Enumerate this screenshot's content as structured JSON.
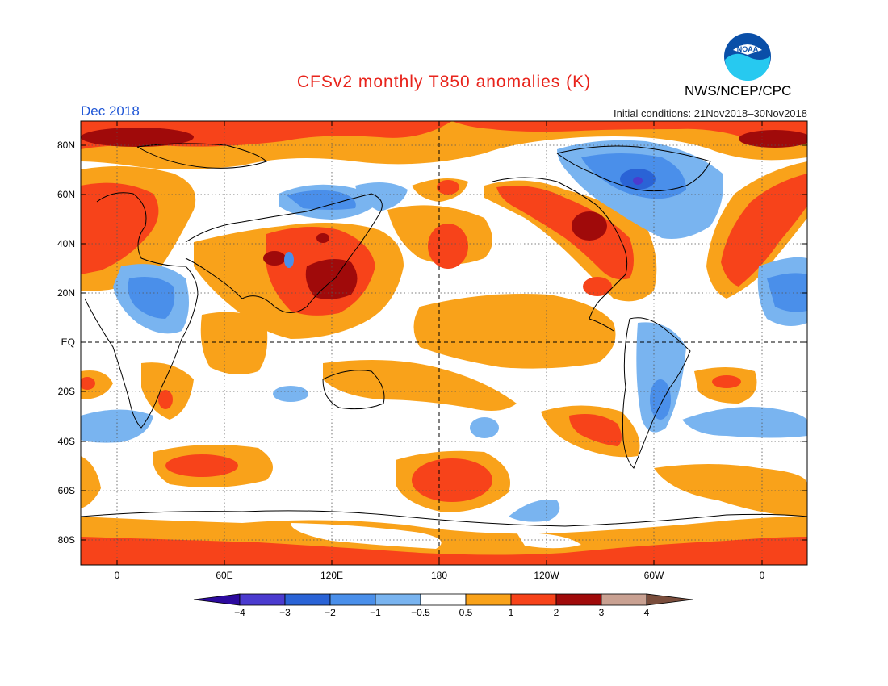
{
  "header": {
    "title": "CFSv2 monthly T850 anomalies (K)",
    "month": "Dec 2018",
    "initial_conditions": "Initial conditions: 21Nov2018–30Nov2018",
    "organization": "NWS/NCEP/CPC",
    "logo_text": "NOAA"
  },
  "colors": {
    "title": "#e8231b",
    "month": "#1f56d6",
    "ocean_land_neutral": "#ffffff",
    "pos_0_5_1": "#f9a21a",
    "pos_1_2": "#f7431a",
    "pos_2_3": "#a00a0a",
    "pos_3_4": "#c9a192",
    "pos_gt4": "#7a4d3c",
    "neg_0_5_1": "#79b4f0",
    "neg_1_2": "#4a8fea",
    "neg_2_3": "#2a63d6",
    "neg_3_4": "#4b3bcf",
    "neg_lt4": "#2c0a9e"
  },
  "axes": {
    "lat_labels": [
      "80N",
      "60N",
      "40N",
      "20N",
      "EQ",
      "20S",
      "40S",
      "60S",
      "80S"
    ],
    "lon_labels": [
      "0",
      "60E",
      "120E",
      "180",
      "120W",
      "60W",
      "0"
    ]
  },
  "colorbar": {
    "labels": [
      "−4",
      "−3",
      "−2",
      "−1",
      "−0.5",
      "0.5",
      "1",
      "2",
      "3",
      "4"
    ],
    "colors": [
      "#4b3bcf",
      "#2a63d6",
      "#4a8fea",
      "#79b4f0",
      "#ffffff",
      "#f9a21a",
      "#f7431a",
      "#a00a0a",
      "#c9a192"
    ],
    "left_arrow_color": "#2c0a9e",
    "right_arrow_color": "#7a4d3c"
  }
}
